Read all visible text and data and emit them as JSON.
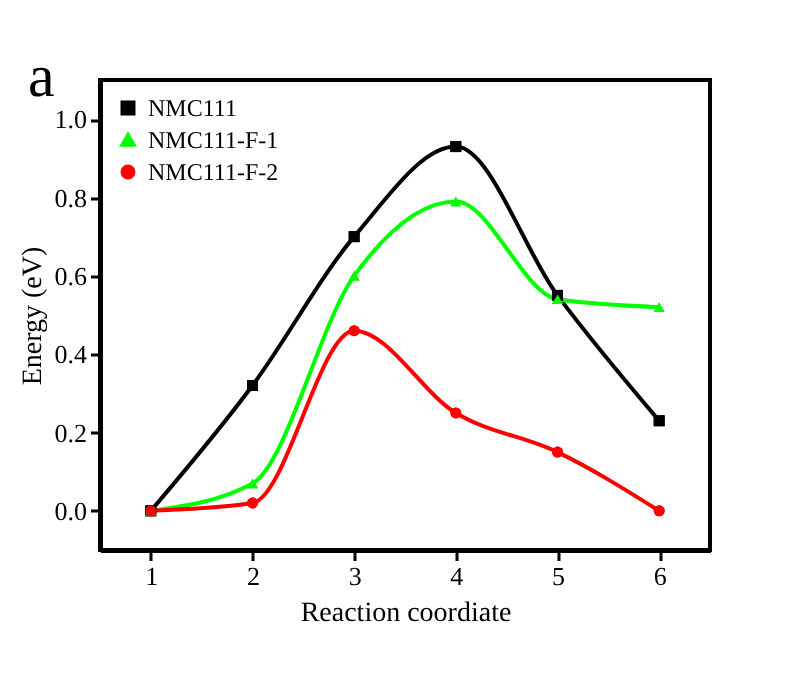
{
  "chart_data": {
    "type": "line",
    "xlabel": "Reaction coordiate",
    "ylabel": "Energy (eV)",
    "annotations": [
      "a"
    ],
    "x": [
      1,
      2,
      3,
      4,
      5,
      6
    ],
    "series": [
      {
        "name": "NMC111",
        "color": "#000000",
        "marker": "square",
        "values": [
          0,
          0.32,
          0.7,
          0.93,
          0.55,
          0.23
        ]
      },
      {
        "name": "NMC111-F-1",
        "color": "#00ff00",
        "marker": "triangle",
        "values": [
          0,
          0.07,
          0.6,
          0.79,
          0.54,
          0.52
        ]
      },
      {
        "name": "NMC111-F-2",
        "color": "#ff0000",
        "marker": "circle",
        "values": [
          0,
          0.02,
          0.46,
          0.25,
          0.15,
          0.0
        ]
      }
    ],
    "xlim": [
      0.5,
      6.5
    ],
    "xticks": [
      1,
      2,
      3,
      4,
      5,
      6
    ],
    "ylim": [
      -0.1,
      1.1
    ],
    "yticks": [
      {
        "value": 0,
        "label": "0.0"
      },
      {
        "value": 0.2,
        "label": "0.2"
      },
      {
        "value": 0.4,
        "label": "0.4"
      },
      {
        "value": 0.6,
        "label": "0.6"
      },
      {
        "value": 0.8,
        "label": "0.8"
      },
      {
        "value": 1.0,
        "label": "1.0"
      }
    ],
    "grid": false,
    "legend": "top left"
  }
}
